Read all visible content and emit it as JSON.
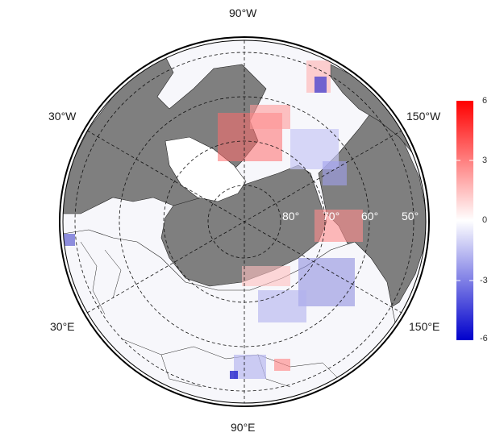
{
  "map": {
    "projection": "north polar stereographic",
    "longitude_labels": {
      "top": "90°W",
      "bottom": "90°E",
      "upper_left": "30°W",
      "lower_left": "30°E",
      "upper_right": "150°W",
      "lower_right": "150°E"
    },
    "latitude_labels": [
      "80°",
      "70°",
      "60°",
      "50°"
    ],
    "colors": {
      "land": "#7f7f7f",
      "ocean_zero": "#ffffff",
      "positive": "#ff0000",
      "negative": "#0000cc"
    }
  },
  "colorbar": {
    "min": -6,
    "max": 6,
    "ticks": [
      "6",
      "3",
      "0",
      "-3",
      "-6"
    ],
    "colors": [
      "#0000cc",
      "#ffffff",
      "#ff0000"
    ]
  }
}
